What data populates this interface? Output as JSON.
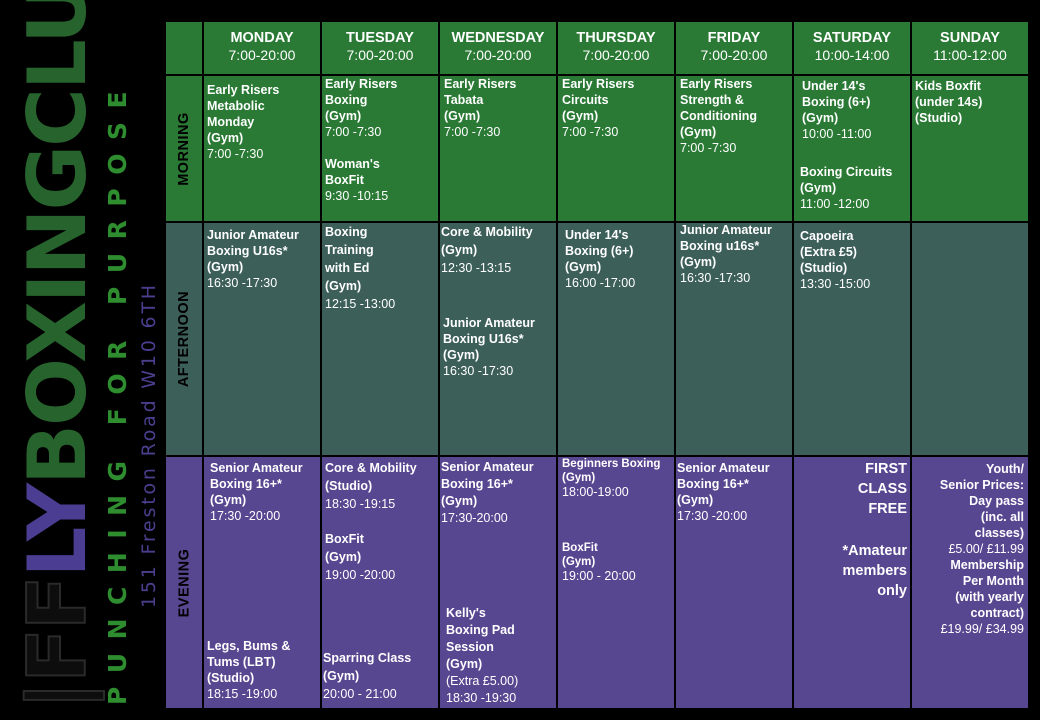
{
  "brand": {
    "logo_line1": "|FF",
    "logo_line2": "LY",
    "logo_line3": "BOXINGCLUB",
    "tagline": "PUNCHING FOR PURPOSE",
    "address": "151 Freston Road W10 6TH"
  },
  "days": [
    {
      "name": "MONDAY",
      "hours": "7:00-20:00"
    },
    {
      "name": "TUESDAY",
      "hours": "7:00-20:00"
    },
    {
      "name": "WEDNESDAY",
      "hours": "7:00-20:00"
    },
    {
      "name": "THURSDAY",
      "hours": "7:00-20:00"
    },
    {
      "name": "FRIDAY",
      "hours": "7:00-20:00"
    },
    {
      "name": "SATURDAY",
      "hours": "10:00-14:00"
    },
    {
      "name": "SUNDAY",
      "hours": "11:00-12:00"
    }
  ],
  "periods": {
    "morning": "MORNING",
    "afternoon": "AFTERNOON",
    "evening": "EVENING"
  },
  "classes": {
    "mon_m": {
      "name": "Early Risers\nMetabolic\nMonday\n(Gym)",
      "time": "7:00 -7:30"
    },
    "tue_m1": {
      "name": "Early Risers\nBoxing\n(Gym)",
      "time": "7:00 -7:30"
    },
    "tue_m2": {
      "name": "Woman's\nBoxFit",
      "time": "9:30 -10:15"
    },
    "wed_m": {
      "name": "Early Risers\nTabata\n(Gym)",
      "time": "7:00 -7:30"
    },
    "thu_m": {
      "name": "Early Risers\nCircuits\n(Gym)",
      "time": "7:00 -7:30"
    },
    "fri_m": {
      "name": "Early Risers\nStrength &\nConditioning\n(Gym)",
      "time": "7:00 -7:30"
    },
    "sat_m1": {
      "name": "Under 14's\nBoxing (6+)\n(Gym)",
      "time": "10:00 -11:00"
    },
    "sat_m2": {
      "name": "Boxing Circuits\n(Gym)",
      "time": "11:00 -12:00"
    },
    "sun_m": {
      "name": "Kids Boxfit\n(under 14s)\n(Studio)"
    },
    "mon_a": {
      "name": "Junior Amateur\nBoxing U16s*\n(Gym)",
      "time": "16:30 -17:30"
    },
    "tue_a": {
      "name": "Boxing\nTraining\nwith Ed\n(Gym)",
      "time": "12:15 -13:00"
    },
    "wed_a1": {
      "name": "Core & Mobility\n(Gym)",
      "time": "12:30 -13:15"
    },
    "wed_a2": {
      "name": "Junior Amateur\nBoxing U16s*\n(Gym)",
      "time": "16:30 -17:30"
    },
    "thu_a": {
      "name": "Under 14's\nBoxing (6+)\n(Gym)",
      "time": "16:00 -17:00"
    },
    "fri_a": {
      "name": "Junior Amateur\nBoxing u16s*\n(Gym)",
      "time": "16:30 -17:30"
    },
    "sat_a": {
      "name": "Capoeira\n(Extra £5)\n(Studio)",
      "time": "13:30 -15:00"
    },
    "mon_e1": {
      "name": "Senior Amateur\nBoxing 16+*\n(Gym)",
      "time": "17:30 -20:00"
    },
    "mon_e2": {
      "name": "Legs, Bums &\nTums (LBT)\n(Studio)",
      "time": "18:15 -19:00"
    },
    "tue_e1": {
      "name": "Core & Mobility\n(Studio)",
      "time": "18:30 -19:15"
    },
    "tue_e2": {
      "name": "BoxFit\n(Gym)",
      "time": "19:00 -20:00"
    },
    "tue_e3": {
      "name": "Sparring Class\n(Gym)",
      "time": "20:00 - 21:00"
    },
    "wed_e1": {
      "name": "Senior Amateur\nBoxing 16+*\n(Gym)",
      "time": "17:30-20:00"
    },
    "wed_e2": {
      "name": "Kelly's\nBoxing Pad\nSession\n(Gym)",
      "extra": "(Extra £5.00)",
      "time": "18:30 -19:30"
    },
    "thu_e1": {
      "name": "Beginners Boxing\n(Gym)",
      "time": "18:00-19:00"
    },
    "thu_e2": {
      "name": "BoxFit\n(Gym)",
      "time": "19:00 - 20:00"
    },
    "fri_e": {
      "name": "Senior Amateur\nBoxing 16+*\n(Gym)",
      "time": "17:30 -20:00"
    }
  },
  "saturday_evening": {
    "first_class": "FIRST\nCLASS\nFREE",
    "note": "*Amateur\nmembers\nonly"
  },
  "pricing": {
    "day_pass_label": "Youth/\nSenior Prices:\nDay pass\n(inc. all\nclasses)",
    "day_pass_value": "£5.00/ £11.99",
    "membership_label": "Membership\nPer Month\n(with yearly\ncontract)",
    "membership_value": "£19.99/ £34.99"
  },
  "colors": {
    "morning": "#2a7a35",
    "afternoon": "#3d5f5a",
    "evening": "#574791",
    "tagline": "#2e8d2f",
    "address": "#4a3f8f"
  }
}
